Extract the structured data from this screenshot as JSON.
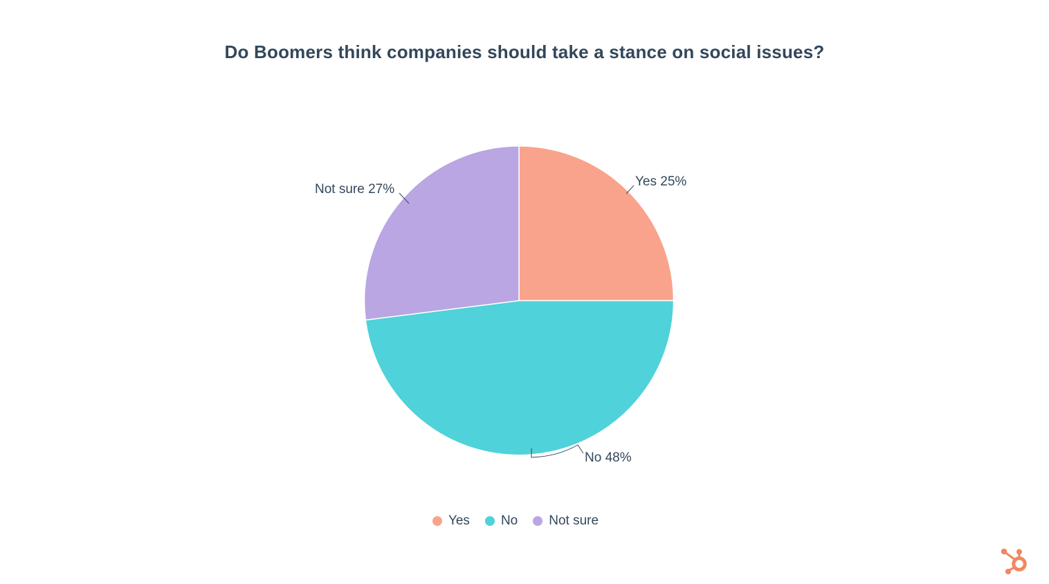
{
  "title": "Do Boomers think companies should take a stance on social issues?",
  "chart_data": {
    "type": "pie",
    "title": "Do Boomers think companies should take a stance on social issues?",
    "categories": [
      "Yes",
      "No",
      "Not sure"
    ],
    "values": [
      25,
      48,
      27
    ],
    "unit": "%",
    "colors": [
      "#F9A38C",
      "#4FD2D9",
      "#B9A6E2"
    ],
    "data_labels": [
      "Yes 25%",
      "No 48%",
      "Not sure 27%"
    ],
    "start_angle": 0,
    "direction": "clockwise",
    "legend_position": "bottom",
    "title_color": "#33475b",
    "label_color": "#33475b",
    "slice_border_color": "#ffffff"
  },
  "legend": {
    "items": [
      {
        "label": "Yes"
      },
      {
        "label": "No"
      },
      {
        "label": "Not sure"
      }
    ]
  },
  "branding": {
    "logo": "hubspot-sprocket-logo",
    "logo_color": "#F2875F"
  }
}
